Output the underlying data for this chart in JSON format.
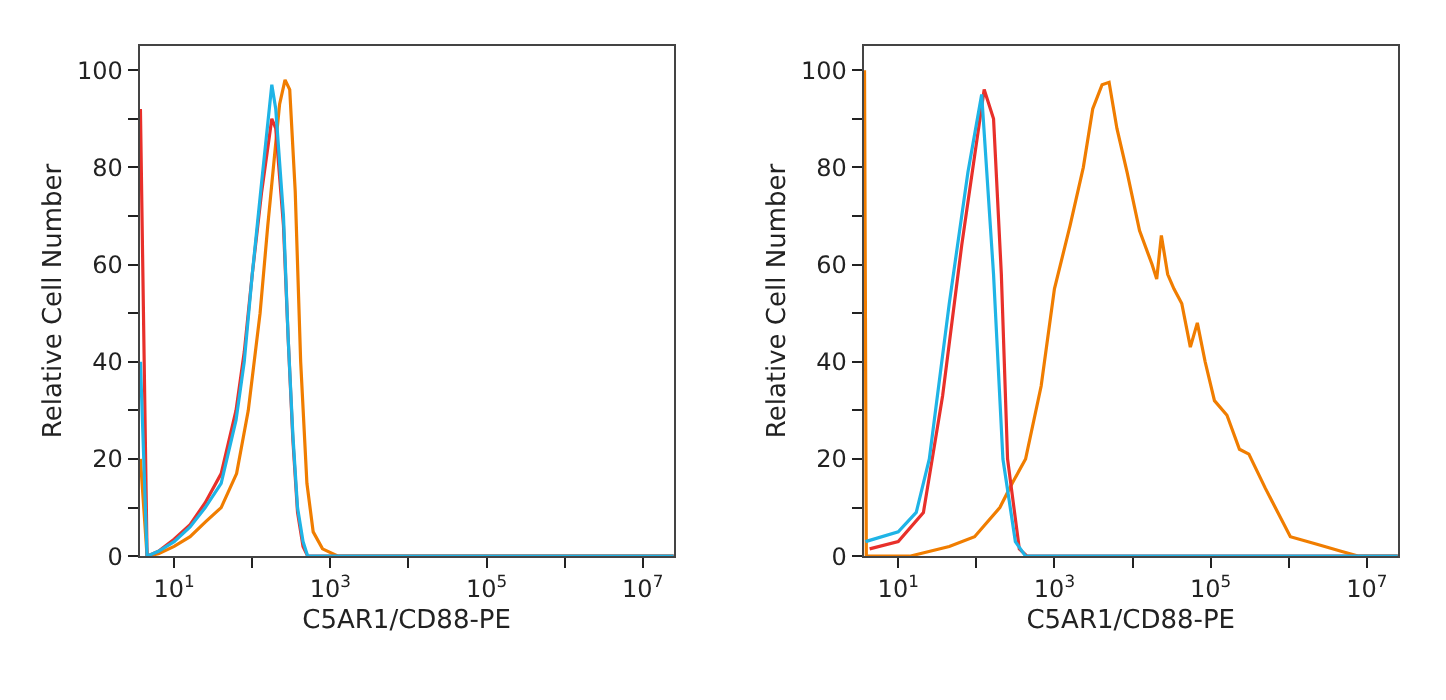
{
  "chart_data": [
    {
      "type": "line",
      "xlabel": "C5AR1/CD88-PE",
      "ylabel": "Relative Cell Number",
      "log": "x",
      "marker": "none",
      "line_style": "solid",
      "xlim": [
        3.6,
        25000000
      ],
      "ylim": [
        0,
        105
      ],
      "xticks": [
        {
          "value": 10,
          "label": "10$^{1}$"
        },
        {
          "value": 100,
          "label": null
        },
        {
          "value": 1000,
          "label": "10$^{3}$"
        },
        {
          "value": 10000,
          "label": null
        },
        {
          "value": 100000,
          "label": "10$^{5}$"
        },
        {
          "value": 1000000,
          "label": null
        },
        {
          "value": 10000000,
          "label": "10$^{7}$"
        }
      ],
      "yticks": [
        0,
        {
          "value": 10,
          "label": null
        },
        20,
        {
          "value": 30,
          "label": null
        },
        40,
        {
          "value": 50,
          "label": null
        },
        60,
        {
          "value": 70,
          "label": null
        },
        80,
        {
          "value": 90,
          "label": null
        },
        100
      ],
      "series": [
        {
          "color": "#f07d00",
          "x": [
            3.7,
            4.5,
            6.3,
            10,
            16,
            25,
            40,
            63,
            89,
            126,
            158,
            200,
            224,
            263,
            302,
            355,
            417,
            501,
            603,
            794,
            1259,
            25000000
          ],
          "values": [
            20,
            0,
            0.5,
            2,
            4,
            7,
            10,
            17,
            30,
            50,
            68,
            85,
            93,
            98,
            96,
            75,
            40,
            15,
            5,
            1.5,
            0,
            0
          ]
        },
        {
          "color": "#e8302a",
          "x": [
            3.7,
            4.5,
            6.3,
            10,
            16,
            25,
            40,
            62,
            79,
            100,
            132,
            178,
            200,
            251,
            288,
            331,
            380,
            447,
            513,
            25000000
          ],
          "values": [
            92,
            0,
            1,
            3.5,
            6.5,
            11,
            17,
            30,
            42,
            58,
            75,
            90,
            88,
            68,
            45,
            24,
            9,
            2,
            0,
            0
          ]
        },
        {
          "color": "#1fb4e6",
          "x": [
            3.7,
            4.5,
            6.3,
            10,
            16,
            25,
            40,
            62,
            79,
            100,
            132,
            178,
            200,
            251,
            288,
            331,
            380,
            447,
            513,
            25000000
          ],
          "values": [
            40,
            0,
            1,
            3,
            6,
            10,
            15,
            28,
            40,
            58,
            77,
            97,
            92,
            70,
            45,
            25,
            10,
            3,
            0,
            0
          ]
        }
      ]
    },
    {
      "type": "line",
      "xlabel": "C5AR1/CD88-PE",
      "ylabel": "Relative Cell Number",
      "log": "x",
      "marker": "none",
      "line_style": "solid",
      "xlim": [
        3.6,
        25000000
      ],
      "ylim": [
        0,
        105
      ],
      "xticks": [
        {
          "value": 10,
          "label": "10$^{1}$"
        },
        {
          "value": 100,
          "label": null
        },
        {
          "value": 1000,
          "label": "10$^{3}$"
        },
        {
          "value": 10000,
          "label": null
        },
        {
          "value": 100000,
          "label": "10$^{5}$"
        },
        {
          "value": 1000000,
          "label": null
        },
        {
          "value": 10000000,
          "label": "10$^{7}$"
        }
      ],
      "yticks": [
        0,
        {
          "value": 10,
          "label": null
        },
        20,
        {
          "value": 30,
          "label": null
        },
        40,
        {
          "value": 50,
          "label": null
        },
        60,
        {
          "value": 70,
          "label": null
        },
        80,
        {
          "value": 90,
          "label": null
        },
        100
      ],
      "series": [
        {
          "color": "#f07d00",
          "x": [
            3.7,
            3.9,
            14,
            45,
            95,
            200,
            288,
            427,
            676,
            1000,
            1585,
            2344,
            3090,
            4074,
            5012,
            6310,
            8511,
            12300,
            17800,
            20400,
            23400,
            28200,
            33900,
            42700,
            55000,
            67600,
            85100,
            112000,
            162000,
            234000,
            309000,
            501000,
            1050000,
            2240000,
            4680000,
            7940000,
            25000000
          ],
          "values": [
            100,
            0,
            0,
            2,
            4,
            10,
            15,
            20,
            35,
            55,
            68,
            80,
            92,
            97,
            97.5,
            88,
            79,
            67,
            60,
            57,
            66,
            58,
            55,
            52,
            43,
            48,
            40,
            32,
            29,
            22,
            21,
            14,
            4,
            2.5,
            1,
            0,
            0
          ]
        },
        {
          "color": "#e8302a",
          "x": [
            4.3,
            10,
            21,
            37,
            65,
            126,
            166,
            209,
            251,
            355,
            447,
            25000000
          ],
          "values": [
            1.5,
            3,
            9,
            33,
            64,
            96,
            90,
            58,
            20,
            1.5,
            0,
            0
          ]
        },
        {
          "color": "#1fb4e6",
          "x": [
            3.8,
            10,
            17,
            25,
            45,
            78,
            117,
            166,
            219,
            316,
            427,
            25000000
          ],
          "values": [
            3,
            5,
            9,
            20,
            52,
            79,
            95,
            58,
            20,
            3,
            0,
            0
          ]
        }
      ]
    }
  ]
}
